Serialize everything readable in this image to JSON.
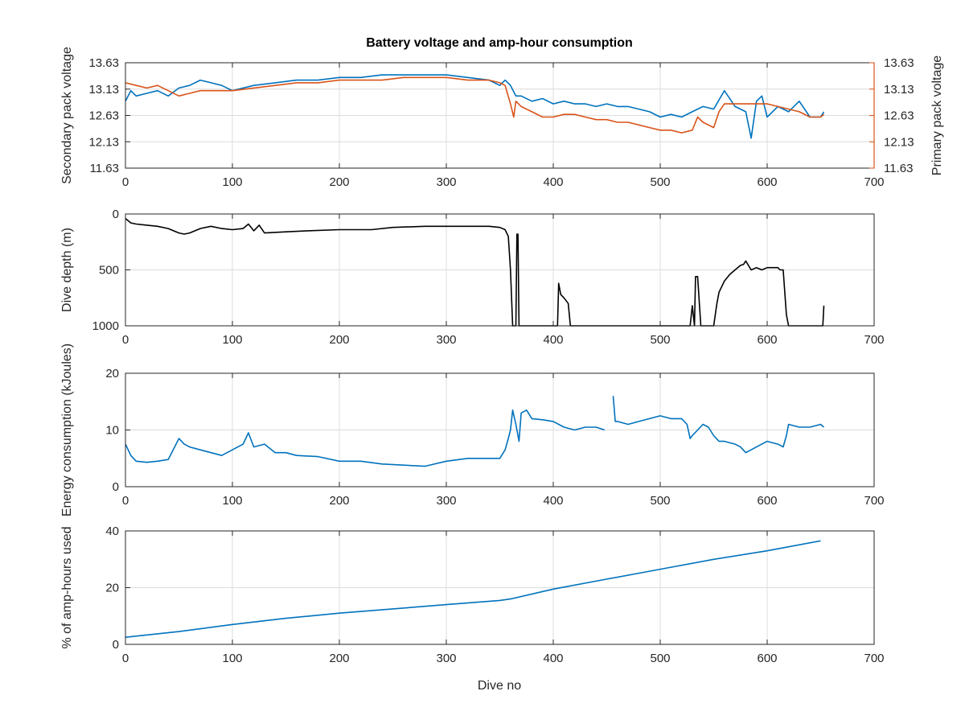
{
  "title": "Battery voltage and amp-hour consumption",
  "xlabel": "Dive no",
  "colors": {
    "blue": "#0072bd",
    "orange": "#d95319",
    "black": "#000000",
    "axis": "#262626",
    "grid": "#dcdcdc"
  },
  "chart_data": [
    {
      "type": "line",
      "title": "Battery voltage and amp-hour consumption",
      "xlim": [
        0,
        700
      ],
      "xticks": [
        0,
        100,
        200,
        300,
        400,
        500,
        600,
        700
      ],
      "ylabel": "Secondary pack voltage",
      "ylim": [
        11.63,
        13.63
      ],
      "yticks": [
        11.63,
        12.13,
        12.63,
        13.13,
        13.63
      ],
      "y2label": "Primary pack voltage",
      "y2lim": [
        11.63,
        13.63
      ],
      "y2ticks": [
        11.63,
        12.13,
        12.63,
        13.13,
        13.63
      ],
      "grid": true,
      "series": [
        {
          "axis": "left",
          "color": "#0072bd",
          "x": [
            0,
            5,
            10,
            20,
            30,
            40,
            50,
            60,
            70,
            80,
            90,
            100,
            120,
            140,
            160,
            180,
            200,
            220,
            240,
            260,
            280,
            300,
            320,
            340,
            350,
            355,
            360,
            365,
            370,
            380,
            390,
            400,
            410,
            420,
            430,
            440,
            450,
            460,
            470,
            480,
            490,
            500,
            510,
            520,
            530,
            540,
            550,
            560,
            570,
            580,
            585,
            590,
            595,
            600,
            610,
            620,
            630,
            640,
            650,
            653
          ],
          "y": [
            12.9,
            13.1,
            13.0,
            13.05,
            13.1,
            13.0,
            13.15,
            13.2,
            13.3,
            13.25,
            13.2,
            13.1,
            13.2,
            13.25,
            13.3,
            13.3,
            13.35,
            13.35,
            13.4,
            13.4,
            13.4,
            13.4,
            13.35,
            13.3,
            13.2,
            13.3,
            13.2,
            13.0,
            13.0,
            12.9,
            12.95,
            12.85,
            12.9,
            12.85,
            12.85,
            12.8,
            12.85,
            12.8,
            12.8,
            12.75,
            12.7,
            12.6,
            12.65,
            12.6,
            12.7,
            12.8,
            12.75,
            13.1,
            12.8,
            12.7,
            12.2,
            12.9,
            13.0,
            12.6,
            12.8,
            12.7,
            12.9,
            12.6,
            12.6,
            12.7
          ]
        },
        {
          "axis": "right",
          "color": "#d95319",
          "x": [
            0,
            10,
            20,
            30,
            40,
            50,
            60,
            70,
            80,
            100,
            120,
            140,
            160,
            180,
            200,
            220,
            240,
            260,
            280,
            300,
            320,
            340,
            350,
            355,
            360,
            363,
            365,
            370,
            380,
            390,
            400,
            410,
            420,
            430,
            440,
            450,
            460,
            470,
            480,
            490,
            500,
            510,
            520,
            530,
            535,
            540,
            550,
            555,
            560,
            570,
            580,
            590,
            600,
            610,
            620,
            630,
            640,
            650,
            653
          ],
          "y": [
            13.25,
            13.2,
            13.15,
            13.2,
            13.1,
            13.0,
            13.05,
            13.1,
            13.1,
            13.1,
            13.15,
            13.2,
            13.25,
            13.25,
            13.3,
            13.3,
            13.3,
            13.35,
            13.35,
            13.35,
            13.3,
            13.3,
            13.25,
            13.2,
            12.85,
            12.6,
            12.9,
            12.8,
            12.7,
            12.6,
            12.6,
            12.65,
            12.65,
            12.6,
            12.55,
            12.55,
            12.5,
            12.5,
            12.45,
            12.4,
            12.35,
            12.35,
            12.3,
            12.35,
            12.6,
            12.5,
            12.4,
            12.7,
            12.85,
            12.85,
            12.85,
            12.85,
            12.85,
            12.8,
            12.75,
            12.7,
            12.6,
            12.6,
            12.65
          ]
        }
      ]
    },
    {
      "type": "line",
      "xlim": [
        0,
        700
      ],
      "xticks": [
        0,
        100,
        200,
        300,
        400,
        500,
        600,
        700
      ],
      "ylabel": "Dive depth (m)",
      "ylim": [
        0,
        1000
      ],
      "yticks": [
        0,
        500,
        1000
      ],
      "yreversed": true,
      "grid": true,
      "series": [
        {
          "color": "#000000",
          "x": [
            0,
            5,
            10,
            20,
            30,
            40,
            50,
            55,
            60,
            70,
            80,
            90,
            100,
            110,
            115,
            120,
            125,
            130,
            150,
            170,
            200,
            230,
            250,
            280,
            300,
            320,
            340,
            350,
            355,
            358,
            360,
            362,
            363,
            365,
            366,
            367,
            368,
            370,
            380,
            390,
            400,
            404,
            405,
            407,
            410,
            414,
            416,
            420,
            450,
            500,
            520,
            528,
            530,
            532,
            533,
            535,
            538,
            540,
            550,
            553,
            555,
            560,
            565,
            570,
            575,
            578,
            580,
            585,
            590,
            595,
            600,
            610,
            612,
            615,
            618,
            620,
            640,
            650,
            652,
            653
          ],
          "y": [
            40,
            80,
            90,
            100,
            110,
            130,
            170,
            180,
            170,
            130,
            110,
            130,
            140,
            130,
            90,
            150,
            100,
            170,
            160,
            150,
            140,
            140,
            120,
            110,
            110,
            110,
            110,
            120,
            140,
            200,
            500,
            1000,
            1000,
            1000,
            180,
            180,
            1000,
            1000,
            1000,
            1000,
            1000,
            1000,
            620,
            720,
            750,
            800,
            1000,
            1000,
            1000,
            1000,
            1000,
            1000,
            820,
            1000,
            560,
            560,
            1000,
            1000,
            1000,
            800,
            700,
            600,
            540,
            500,
            460,
            450,
            420,
            500,
            480,
            500,
            480,
            480,
            500,
            500,
            900,
            1000,
            1000,
            1000,
            1000,
            820
          ]
        }
      ]
    },
    {
      "type": "line",
      "xlim": [
        0,
        700
      ],
      "xticks": [
        0,
        100,
        200,
        300,
        400,
        500,
        600,
        700
      ],
      "ylabel": "Energy consumption (kJoules)",
      "ylim": [
        0,
        20
      ],
      "yticks": [
        0,
        10,
        20
      ],
      "grid": true,
      "series": [
        {
          "color": "#0072bd",
          "x": [
            0,
            5,
            10,
            20,
            30,
            40,
            50,
            55,
            60,
            70,
            80,
            90,
            100,
            110,
            115,
            120,
            130,
            140,
            150,
            160,
            180,
            200,
            220,
            240,
            260,
            280,
            300,
            320,
            340,
            350,
            355,
            358,
            360,
            362,
            365,
            368,
            370,
            375,
            380,
            390,
            400,
            410,
            420,
            430,
            440,
            448
          ],
          "y": [
            7.5,
            5.5,
            4.5,
            4.3,
            4.5,
            4.8,
            8.5,
            7.5,
            7.0,
            6.5,
            6.0,
            5.5,
            6.5,
            7.5,
            9.5,
            7.0,
            7.5,
            6.0,
            6.0,
            5.5,
            5.3,
            4.5,
            4.5,
            4.0,
            3.8,
            3.6,
            4.5,
            5.0,
            5.0,
            5.0,
            6.5,
            8.5,
            10.0,
            13.5,
            11.0,
            8.0,
            13.0,
            13.5,
            12.0,
            11.8,
            11.5,
            10.5,
            10.0,
            10.5,
            10.5,
            10.0
          ]
        },
        {
          "color": "#0072bd",
          "x": [
            456,
            458,
            460,
            470,
            480,
            490,
            500,
            510,
            520,
            525,
            528,
            530,
            535,
            540,
            545,
            550,
            555,
            560,
            570,
            575,
            580,
            590,
            600,
            610,
            615,
            618,
            620,
            630,
            640,
            650,
            653
          ],
          "y": [
            16.0,
            11.5,
            11.5,
            11.0,
            11.5,
            12.0,
            12.5,
            12.0,
            12.0,
            11.0,
            8.5,
            9.0,
            10.0,
            11.0,
            10.5,
            9.0,
            8.0,
            8.0,
            7.5,
            7.0,
            6.0,
            7.0,
            8.0,
            7.5,
            7.0,
            9.0,
            11.0,
            10.5,
            10.5,
            11.0,
            10.5
          ]
        }
      ]
    },
    {
      "type": "line",
      "xlim": [
        0,
        700
      ],
      "xticks": [
        0,
        100,
        200,
        300,
        400,
        500,
        600,
        700
      ],
      "ylabel": "% of amp-hours used",
      "ylim": [
        0,
        40
      ],
      "yticks": [
        0,
        20,
        40
      ],
      "grid": true,
      "series": [
        {
          "color": "#0072bd",
          "x": [
            0,
            50,
            100,
            150,
            200,
            250,
            300,
            350,
            360,
            400,
            450,
            500,
            550,
            600,
            650
          ],
          "y": [
            2.5,
            4.5,
            7.0,
            9.2,
            11.0,
            12.5,
            14.0,
            15.5,
            16.0,
            19.5,
            23.0,
            26.5,
            30.0,
            33.0,
            36.5
          ]
        }
      ]
    }
  ]
}
